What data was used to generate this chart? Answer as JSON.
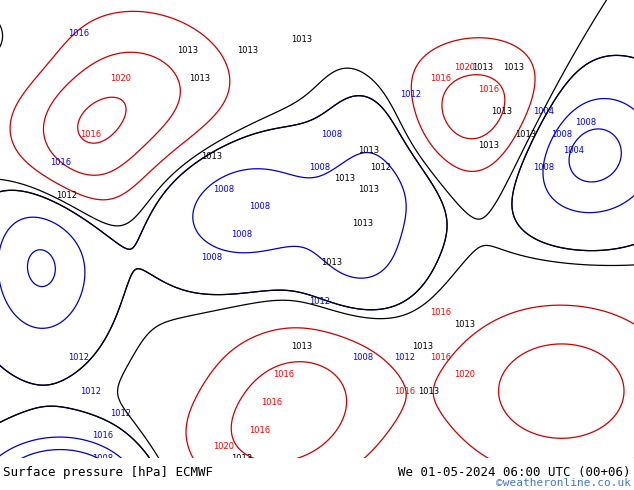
{
  "title_left": "Surface pressure [hPa] ECMWF",
  "title_right": "We 01-05-2024 06:00 UTC (00+06)",
  "watermark": "©weatheronline.co.uk",
  "ocean_color": "#c8d8e8",
  "land_color": "#c8e6b8",
  "border_color": "#888888",
  "figsize": [
    6.34,
    4.9
  ],
  "dpi": 100,
  "bottom_bar_color": "#ffffff",
  "bottom_text_color": "#000000",
  "watermark_color": "#4477cc",
  "font_size_bottom": 9,
  "font_size_watermark": 8,
  "lon_min": -25,
  "lon_max": 80,
  "lat_min": -40,
  "lat_max": 42
}
